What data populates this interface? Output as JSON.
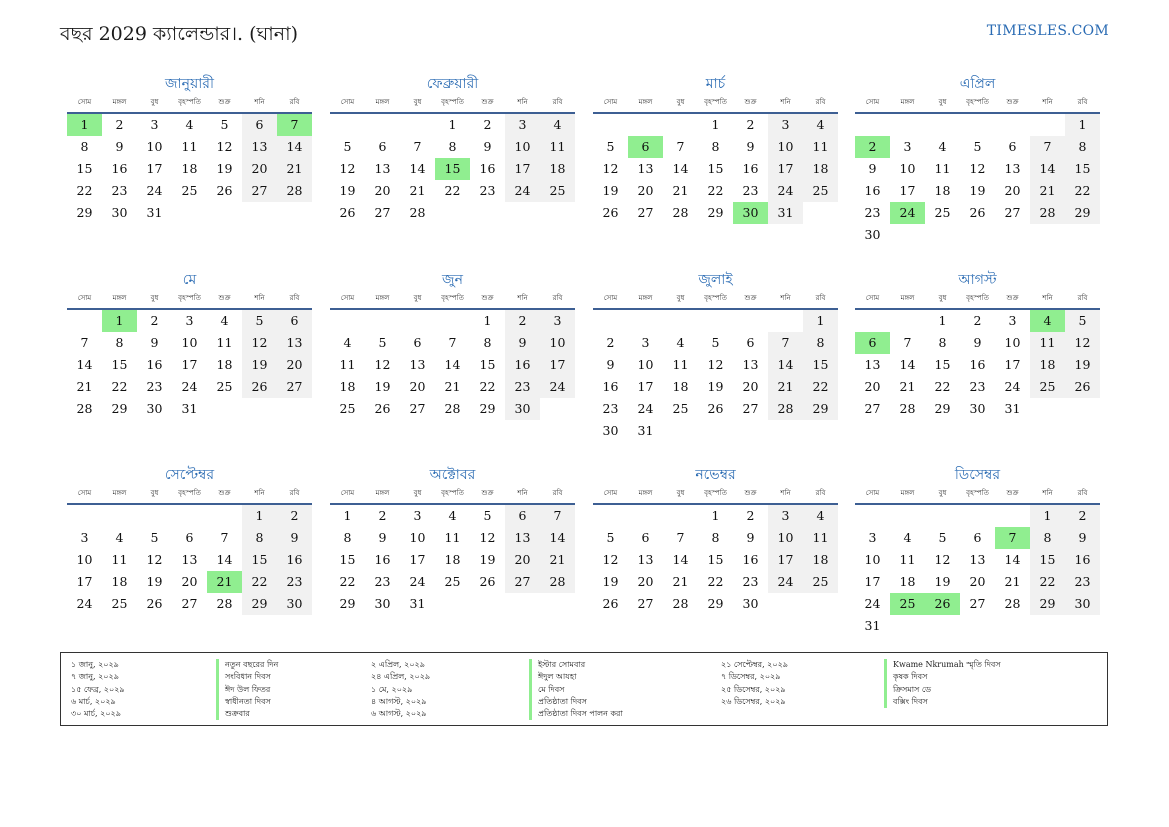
{
  "title": "বছর 2029 ক্যালেন্ডার।. (ঘানা)",
  "brand": "TIMESLES.COM",
  "weekdays": [
    "সোম",
    "মঙ্গল",
    "বুধ",
    "বৃহস্পতি",
    "শুক্র",
    "শনি",
    "রবি"
  ],
  "months": [
    {
      "name": "জানুয়ারী",
      "offset": 0,
      "days": 31,
      "holidays": [
        1,
        7
      ]
    },
    {
      "name": "ফেব্রুয়ারী",
      "offset": 3,
      "days": 28,
      "holidays": [
        15
      ]
    },
    {
      "name": "মার্চ",
      "offset": 3,
      "days": 31,
      "holidays": [
        6,
        30
      ]
    },
    {
      "name": "এপ্রিল",
      "offset": 6,
      "days": 30,
      "holidays": [
        2,
        24
      ]
    },
    {
      "name": "মে",
      "offset": 1,
      "days": 31,
      "holidays": [
        1
      ]
    },
    {
      "name": "জুন",
      "offset": 4,
      "days": 30,
      "holidays": []
    },
    {
      "name": "জুলাই",
      "offset": 6,
      "days": 31,
      "holidays": []
    },
    {
      "name": "আগস্ট",
      "offset": 2,
      "days": 31,
      "holidays": [
        4,
        6
      ]
    },
    {
      "name": "সেপ্টেম্বর",
      "offset": 5,
      "days": 30,
      "holidays": [
        21
      ]
    },
    {
      "name": "অক্টোবর",
      "offset": 0,
      "days": 31,
      "holidays": []
    },
    {
      "name": "নভেম্বর",
      "offset": 3,
      "days": 30,
      "holidays": []
    },
    {
      "name": "ডিসেম্বর",
      "offset": 5,
      "days": 31,
      "holidays": [
        7,
        25,
        26
      ]
    }
  ],
  "legend": [
    {
      "dates": [
        "১ জানু, ২০২৯",
        "৭ জানু, ২০২৯",
        "১৫ ফেব্র, ২০২৯",
        "৬ মার্চ, ২০২৯",
        "৩০ মার্চ, ২০২৯"
      ],
      "names": [
        "নতুন বছরের দিন",
        "সংবিধান দিবস",
        "ঈদ উল ফিতর",
        "স্বাধীনতা দিবস",
        "শুক্রবার"
      ]
    },
    {
      "dates": [
        "২ এপ্রিল, ২০২৯",
        "২৪ এপ্রিল, ২০২৯",
        "১ মে, ২০২৯",
        "৪ আগস্ট, ২০২৯",
        "৬ আগস্ট, ২০২৯"
      ],
      "names": [
        "ইস্টার সোমবার",
        "ঈদুল আযহা",
        "মে দিবস",
        "প্রতিষ্ঠাতা দিবস",
        "প্রতিষ্ঠাতা দিবস পালন করা"
      ]
    },
    {
      "dates": [
        "২১ সেপ্টেম্বর, ২০২৯",
        "৭ ডিসেম্বর, ২০২৯",
        "২৫ ডিসেম্বর, ২০২৯",
        "২৬ ডিসেম্বর, ২০২৯"
      ],
      "names": [
        "Kwame Nkrumah স্মৃতি দিবস",
        "কৃষক দিবস",
        "ক্রিসমাস ডে",
        "বক্সিং দিবস"
      ]
    }
  ]
}
